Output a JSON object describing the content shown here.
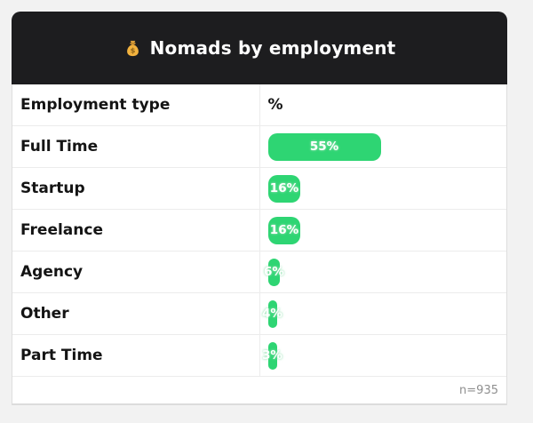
{
  "card": {
    "header": {
      "icon": "money-bag-icon",
      "icon_glyph": "💰",
      "title": "Nomads by employment",
      "bg_color": "#1d1d1f",
      "text_color": "#ffffff"
    },
    "table": {
      "columns": {
        "type": "Employment type",
        "percent": "%"
      },
      "rows": [
        {
          "label": "Full Time",
          "pct": 55,
          "pct_label": "55%"
        },
        {
          "label": "Startup",
          "pct": 16,
          "pct_label": "16%"
        },
        {
          "label": "Freelance",
          "pct": 16,
          "pct_label": "16%"
        },
        {
          "label": "Agency",
          "pct": 6,
          "pct_label": "6%"
        },
        {
          "label": "Other",
          "pct": 4,
          "pct_label": "4%"
        },
        {
          "label": "Part Time",
          "pct": 3,
          "pct_label": "3%"
        }
      ],
      "footer": {
        "sample_size": "n=935"
      }
    },
    "colors": {
      "bar_green": "#2ed573",
      "page_bg": "#f2f2f2",
      "border": "#ececec"
    }
  },
  "chart_data": {
    "type": "bar",
    "orientation": "horizontal",
    "title": "Nomads by employment",
    "categories": [
      "Full Time",
      "Startup",
      "Freelance",
      "Agency",
      "Other",
      "Part Time"
    ],
    "values": [
      55,
      16,
      16,
      6,
      4,
      3
    ],
    "unit": "%",
    "xlabel": "%",
    "ylabel": "Employment type",
    "xlim": [
      0,
      100
    ],
    "grid": false,
    "legend": false,
    "annotation": "n=935",
    "bar_color": "#2ed573"
  }
}
